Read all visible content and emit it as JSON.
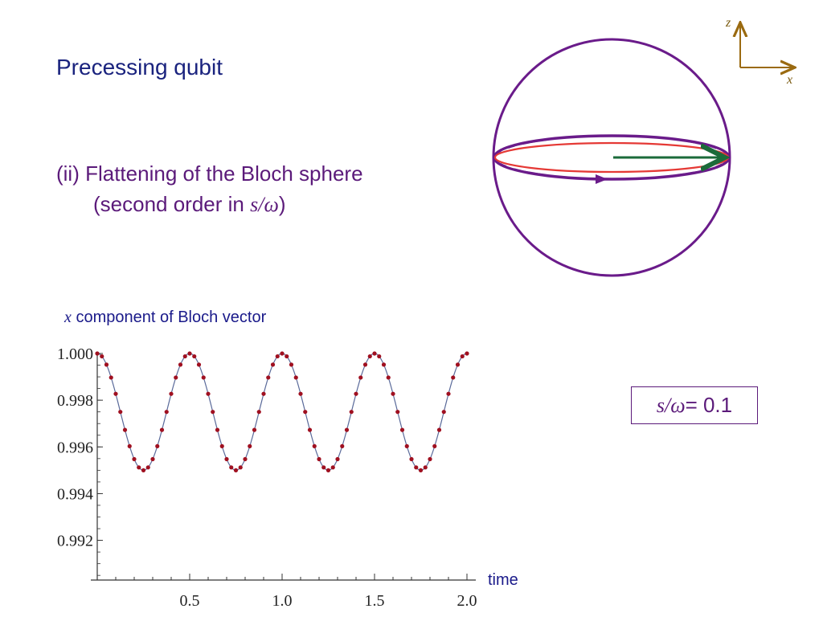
{
  "slide": {
    "title": "Precessing qubit",
    "subtitle_line1": "(ii) Flattening of the Bloch sphere",
    "subtitle_line2_prefix": "(second order in ",
    "subtitle_ratio": "s/ω",
    "subtitle_line2_suffix": ")",
    "param_ratio": "s/ω",
    "param_value": " = 0.1"
  },
  "axes_inset": {
    "z_label": "z",
    "x_label": "x"
  },
  "bloch_sphere": {
    "colors": {
      "sphere": "#6a1b8a",
      "trajectory": "#e53935",
      "vector": "#1b6b3a"
    }
  },
  "chart_data": {
    "type": "line",
    "ylabel_var": "x",
    "ylabel_text": " component of Bloch vector",
    "xlabel": "time",
    "xlim": [
      0,
      2.0
    ],
    "ylim": [
      0.9905,
      1.0005
    ],
    "x_ticks": [
      "0.5",
      "1.0",
      "1.5",
      "2.0"
    ],
    "y_ticks": [
      "1.000",
      "0.998",
      "0.996",
      "0.994",
      "0.992"
    ],
    "y_tick_values": [
      1.0,
      0.998,
      0.996,
      0.994,
      0.992
    ],
    "x_tick_values": [
      0.5,
      1.0,
      1.5,
      2.0
    ],
    "period": 0.5,
    "min_value": 0.995,
    "max_value": 1.0,
    "num_points": 81,
    "colors": {
      "line": "#5a6a9a",
      "points": "#a01020"
    }
  }
}
